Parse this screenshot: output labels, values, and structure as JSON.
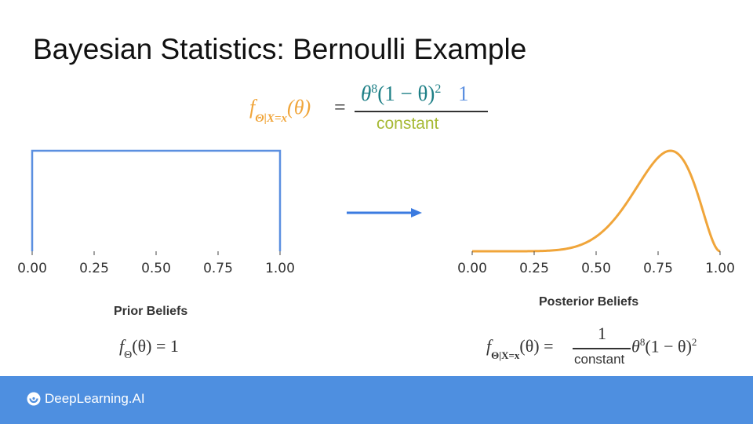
{
  "title": "Bayesian Statistics: Bernoulli Example",
  "top_formula": {
    "lhs_f": "f",
    "lhs_sub": "Θ|X=x",
    "lhs_arg": "(θ)",
    "equals": "=",
    "numerator_theta": "θ",
    "numerator_exp": "8",
    "numerator_mid": "(1 − θ)",
    "numerator_exp2": "2",
    "numerator_prior": "1",
    "denominator": "constant",
    "colors": {
      "posterior": "#f0a53a",
      "likelihood": "#1d7f86",
      "prior": "#5b8fe0",
      "constant": "#a6b934"
    }
  },
  "prior": {
    "caption": "Prior Beliefs",
    "formula_f": "f",
    "formula_sub": "Θ",
    "formula_rest": "(θ) = 1"
  },
  "posterior": {
    "caption": "Posterior Beliefs",
    "lhs_f": "f",
    "lhs_sub": "Θ|X=x",
    "lhs_arg": "(θ) =",
    "numerator": "1",
    "denominator": "constant",
    "rest_theta": "θ",
    "rest_exp": "8",
    "rest_mid": "(1 − θ)",
    "rest_exp2": "2"
  },
  "chart_data": [
    {
      "type": "line",
      "series": [
        {
          "x": [
            0,
            0,
            1,
            1
          ],
          "y": [
            0,
            1,
            1,
            0
          ]
        }
      ],
      "x_ticks": [
        "0.00",
        "0.25",
        "0.50",
        "0.75",
        "1.00"
      ],
      "xlim": [
        0,
        1
      ],
      "ylim": [
        0,
        1
      ],
      "color": "#5b8fe0"
    },
    {
      "type": "line",
      "series": [
        {
          "function": "theta^8*(1-theta)^2"
        }
      ],
      "x_ticks": [
        "0.00",
        "0.25",
        "0.50",
        "0.75",
        "1.00"
      ],
      "xlim": [
        0,
        1
      ],
      "color": "#f0a53a"
    }
  ],
  "arrow_color": "#3b7be0",
  "footer": {
    "brand": "DeepLearning.AI"
  }
}
